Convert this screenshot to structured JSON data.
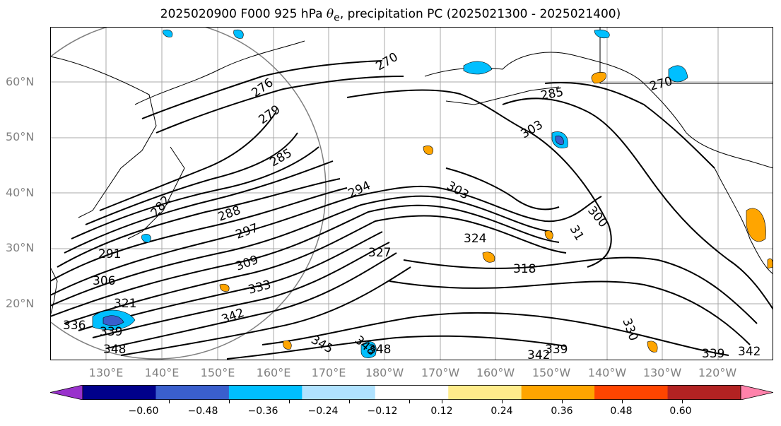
{
  "title": {
    "prefix": "2025020900 F000 925 hPa ",
    "theta": "θ",
    "sub": "e",
    "suffix": ", precipitation PC (2025021300 - 2025021400)"
  },
  "lat_labels": [
    "60°N",
    "50°N",
    "40°N",
    "30°N",
    "20°N"
  ],
  "lon_labels": [
    "130°E",
    "140°E",
    "150°E",
    "160°E",
    "170°E",
    "180°W",
    "170°W",
    "160°W",
    "150°W",
    "140°W",
    "130°W",
    "120°W"
  ],
  "contour_labels": [
    "270",
    "270",
    "276",
    "279",
    "285",
    "285",
    "282",
    "288",
    "291",
    "294",
    "297",
    "300",
    "303",
    "303",
    "306",
    "309",
    "31",
    "318",
    "321",
    "324",
    "327",
    "330",
    "333",
    "336",
    "339",
    "339",
    "339",
    "342",
    "342",
    "342",
    "345",
    "348",
    "348",
    "348"
  ],
  "colorbar": {
    "colors": [
      "#9932CC",
      "#00008B",
      "#3A5FCD",
      "#00BFFF",
      "#B0E2FF",
      "#FFFFFF",
      "#FFEC8B",
      "#FFA500",
      "#FF4500",
      "#B22222",
      "#FF82AB"
    ],
    "tick_labels": [
      "−0.60",
      "−0.48",
      "−0.36",
      "−0.24",
      "−0.12",
      "0.12",
      "0.24",
      "0.36",
      "0.48",
      "0.60"
    ]
  }
}
